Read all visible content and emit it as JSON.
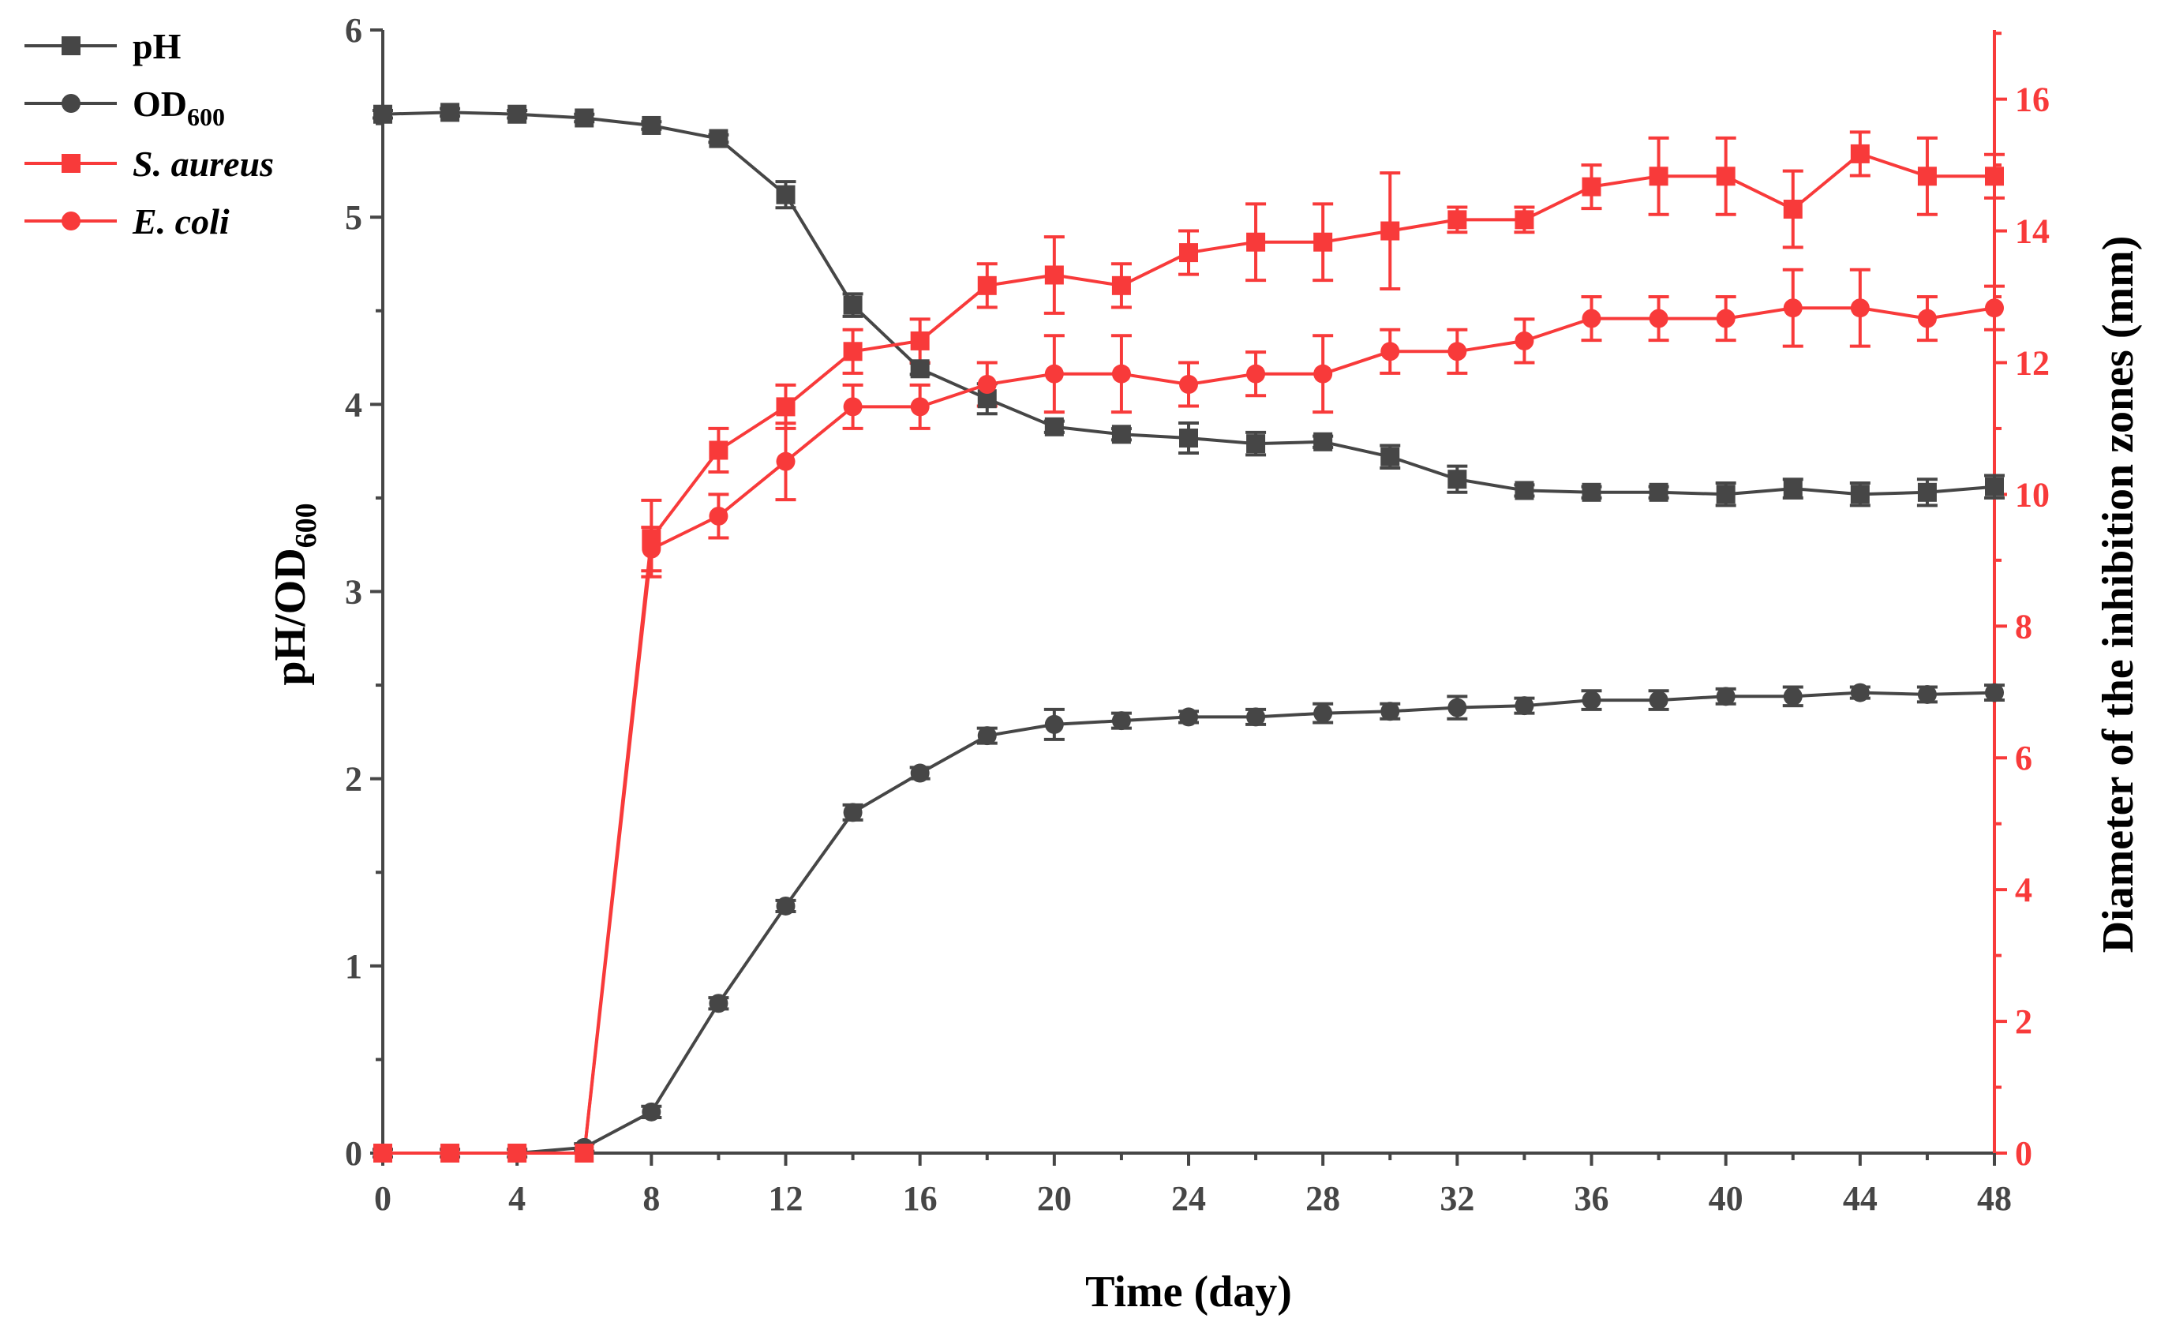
{
  "colors": {
    "gray": "#464646",
    "red": "#f83a3a"
  },
  "chart_data": {
    "type": "line",
    "x": [
      0,
      2,
      4,
      6,
      8,
      10,
      12,
      14,
      16,
      18,
      20,
      22,
      24,
      26,
      28,
      30,
      32,
      34,
      36,
      38,
      40,
      42,
      44,
      46,
      48
    ],
    "xlabel": "Time (day)",
    "ylabel": {
      "main": "pH/OD",
      "sub": "600"
    },
    "y2label": "Diameter of the inhibition zones (mm)",
    "xlim": [
      0,
      48
    ],
    "xticks": [
      0,
      4,
      8,
      12,
      16,
      20,
      24,
      28,
      32,
      36,
      40,
      44,
      48
    ],
    "xminor": 2,
    "ylim": [
      0,
      6
    ],
    "yticks": [
      0,
      1,
      2,
      3,
      4,
      5,
      6
    ],
    "yminor": 0.5,
    "y2lim": [
      0,
      17.05
    ],
    "y2ticks": [
      0,
      2,
      4,
      6,
      8,
      10,
      12,
      14,
      16
    ],
    "y2minor": 1,
    "legend_position": "top-left",
    "series": [
      {
        "name": "pH",
        "sub": "",
        "axis": "left",
        "marker": "square",
        "color": "#464646",
        "label_style": "normal",
        "values": [
          5.55,
          5.56,
          5.55,
          5.53,
          5.49,
          5.42,
          5.12,
          4.53,
          4.19,
          4.03,
          3.88,
          3.84,
          3.82,
          3.79,
          3.8,
          3.72,
          3.6,
          3.54,
          3.53,
          3.53,
          3.52,
          3.55,
          3.52,
          3.53,
          3.56
        ],
        "errors": [
          0.02,
          0.02,
          0.02,
          0.02,
          0.02,
          0.02,
          0.07,
          0.06,
          0.03,
          0.08,
          0.03,
          0.03,
          0.08,
          0.06,
          0.03,
          0.06,
          0.07,
          0.03,
          0.03,
          0.03,
          0.06,
          0.05,
          0.06,
          0.07,
          0.06
        ]
      },
      {
        "name": "OD",
        "sub": "600",
        "axis": "left",
        "marker": "circle",
        "color": "#464646",
        "label_style": "normal",
        "values": [
          0.0,
          0.0,
          0.0,
          0.03,
          0.22,
          0.8,
          1.32,
          1.82,
          2.03,
          2.23,
          2.29,
          2.31,
          2.33,
          2.33,
          2.35,
          2.36,
          2.38,
          2.39,
          2.42,
          2.42,
          2.44,
          2.44,
          2.46,
          2.45,
          2.46
        ],
        "errors": [
          0.02,
          0.02,
          0.02,
          0.02,
          0.03,
          0.03,
          0.03,
          0.04,
          0.03,
          0.04,
          0.08,
          0.04,
          0.03,
          0.04,
          0.05,
          0.04,
          0.06,
          0.04,
          0.05,
          0.05,
          0.04,
          0.05,
          0.03,
          0.04,
          0.04
        ]
      },
      {
        "name": "S. aureus",
        "sub": "",
        "axis": "right",
        "marker": "square",
        "color": "#f83a3a",
        "label_style": "italic",
        "values": [
          0,
          0,
          0,
          0,
          9.33,
          10.67,
          11.33,
          12.17,
          12.33,
          13.17,
          13.33,
          13.17,
          13.67,
          13.83,
          13.83,
          14.0,
          14.17,
          14.17,
          14.67,
          14.83,
          14.83,
          14.33,
          15.17,
          14.83,
          14.83
        ],
        "errors": [
          0,
          0,
          0,
          0,
          0.58,
          0.33,
          0.33,
          0.33,
          0.33,
          0.33,
          0.58,
          0.33,
          0.33,
          0.58,
          0.58,
          0.88,
          0.19,
          0.19,
          0.33,
          0.58,
          0.58,
          0.58,
          0.33,
          0.58,
          0.33
        ]
      },
      {
        "name": "E. coli",
        "sub": "",
        "axis": "right",
        "marker": "circle",
        "color": "#f83a3a",
        "label_style": "italic",
        "values": [
          0,
          0,
          0,
          0,
          9.17,
          9.67,
          10.5,
          11.33,
          11.33,
          11.67,
          11.83,
          11.83,
          11.67,
          11.83,
          11.83,
          12.17,
          12.17,
          12.33,
          12.67,
          12.67,
          12.67,
          12.83,
          12.83,
          12.67,
          12.83
        ],
        "errors": [
          0,
          0,
          0,
          0,
          0.33,
          0.33,
          0.58,
          0.33,
          0.33,
          0.33,
          0.58,
          0.58,
          0.33,
          0.33,
          0.58,
          0.33,
          0.33,
          0.33,
          0.33,
          0.33,
          0.33,
          0.58,
          0.58,
          0.33,
          0.33
        ]
      }
    ]
  }
}
